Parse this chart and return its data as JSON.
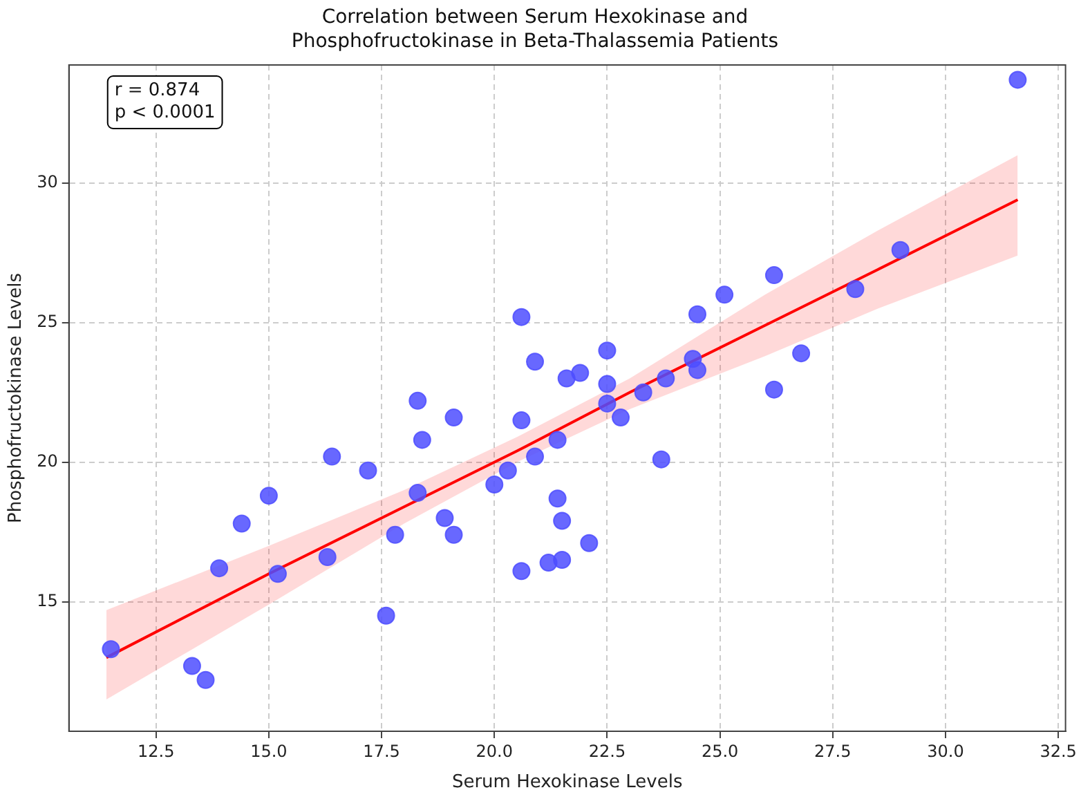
{
  "chart_data": {
    "type": "scatter",
    "title": "Correlation between Serum Hexokinase and\nPhosphofructokinase in Beta-Thalassemia Patients",
    "xlabel": "Serum Hexokinase Levels",
    "ylabel": "Phosphofructokinase Levels",
    "annotations": [
      "r = 0.874\np < 0.0001"
    ],
    "xlim": [
      10.57,
      32.66
    ],
    "ylim": [
      10.36,
      34.23
    ],
    "xticks": [
      12.5,
      {
        "value": 15,
        "label": "15.0"
      },
      17.5,
      {
        "value": 20,
        "label": "20.0"
      },
      22.5,
      {
        "value": 25,
        "label": "25.0"
      },
      27.5,
      {
        "value": 30,
        "label": "30.0"
      },
      32.5
    ],
    "yticks": [
      15,
      20,
      25,
      30
    ],
    "grid": true,
    "marker": "circle",
    "series": [
      {
        "color": "#4d4dff",
        "x": [
          11.5,
          13.3,
          13.6,
          13.9,
          14.4,
          15.0,
          15.2,
          16.3,
          16.4,
          17.2,
          17.6,
          17.8,
          18.3,
          18.3,
          18.4,
          18.9,
          19.1,
          19.1,
          20.0,
          20.3,
          20.6,
          20.6,
          20.6,
          20.9,
          20.9,
          21.2,
          21.4,
          21.4,
          21.5,
          21.5,
          21.6,
          21.9,
          22.1,
          22.5,
          22.5,
          22.5,
          22.8,
          23.3,
          23.7,
          23.8,
          24.4,
          24.5,
          24.5,
          25.1,
          26.2,
          26.2,
          26.8,
          28.0,
          29.0,
          31.6
        ],
        "values": [
          13.3,
          12.7,
          12.2,
          16.2,
          17.8,
          18.8,
          16.0,
          16.6,
          20.2,
          19.7,
          14.5,
          17.4,
          22.2,
          18.9,
          20.8,
          18.0,
          17.4,
          21.6,
          19.2,
          19.7,
          16.1,
          25.2,
          21.5,
          23.6,
          20.2,
          16.4,
          20.8,
          18.7,
          17.9,
          16.5,
          23.0,
          23.2,
          17.1,
          24.0,
          22.8,
          22.1,
          21.6,
          22.5,
          20.1,
          23.0,
          23.7,
          25.3,
          23.3,
          26.0,
          26.7,
          22.6,
          23.9,
          26.2,
          27.6,
          33.7
        ]
      },
      {
        "type": "line",
        "color": "#ff0000",
        "line_style": "solid",
        "marker": "none",
        "x": [
          11.4,
          15,
          18,
          20.5,
          23,
          26,
          28.5,
          31.6
        ],
        "values": [
          13.0,
          16.0,
          18.4,
          20.4,
          22.5,
          24.9,
          26.9,
          29.4
        ],
        "lower": [
          11.5,
          14.9,
          17.8,
          20.0,
          21.9,
          23.8,
          25.5,
          27.4
        ],
        "upper": [
          14.7,
          17.0,
          19.0,
          20.9,
          23.0,
          26.0,
          28.3,
          31.0
        ]
      }
    ]
  }
}
